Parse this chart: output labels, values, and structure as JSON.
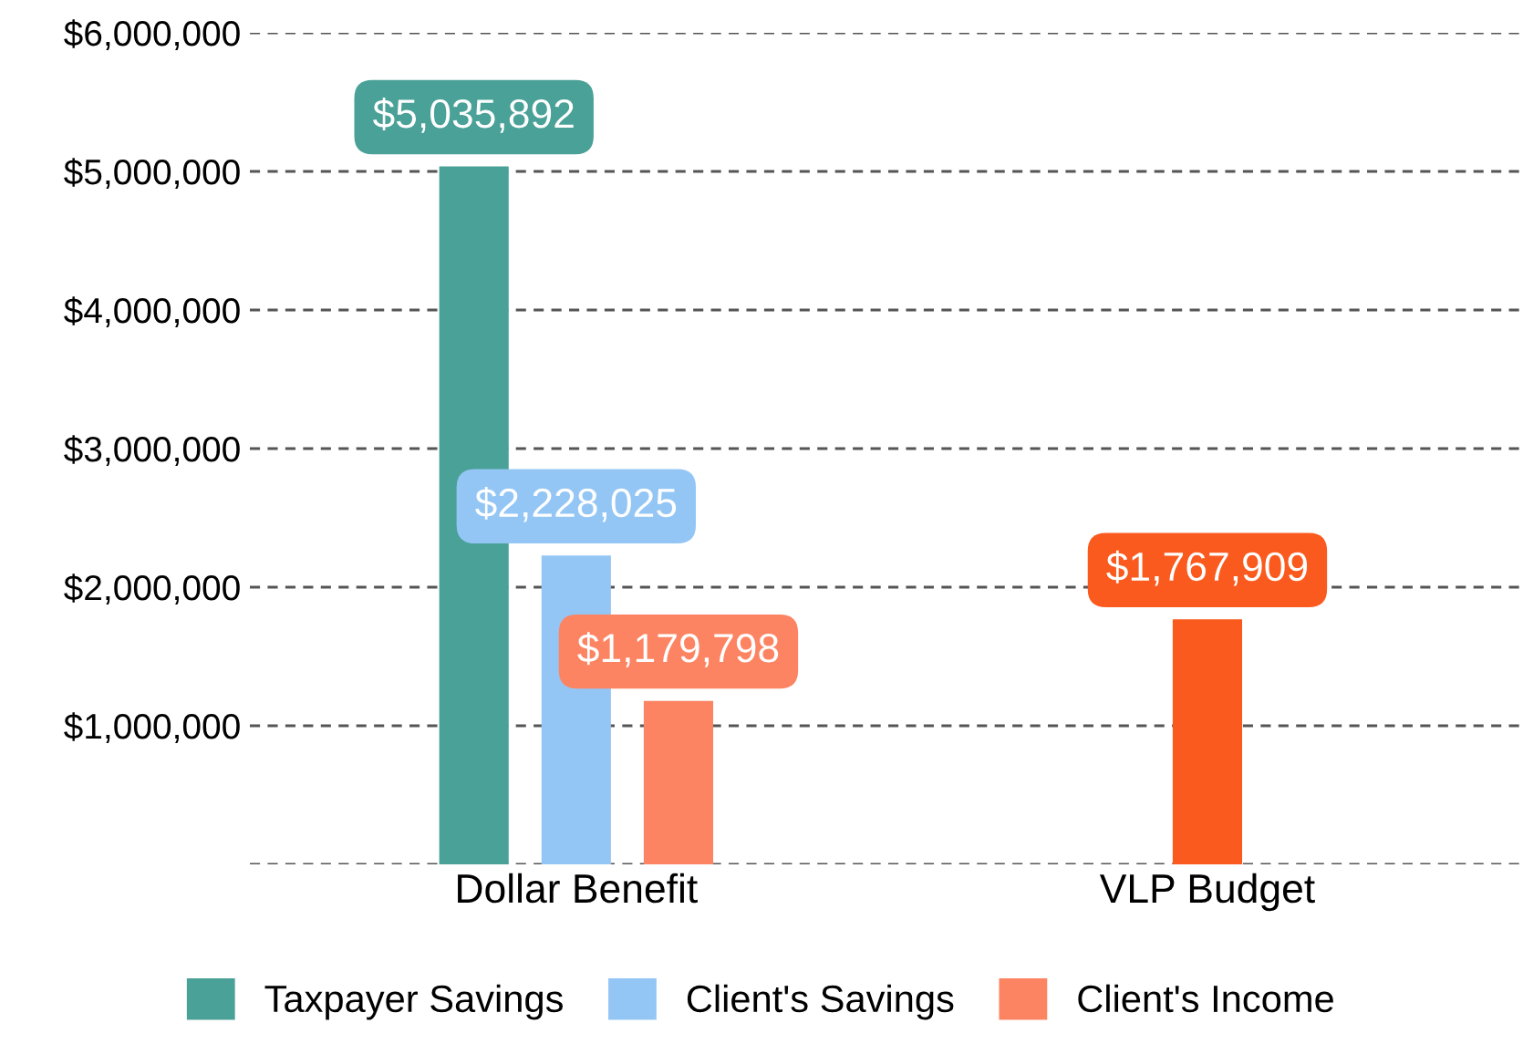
{
  "chart_data": {
    "type": "bar",
    "categories": [
      "Dollar Benefit",
      "VLP Budget"
    ],
    "series": [
      {
        "name": "Taxpayer Savings",
        "color": "#4aa197",
        "values": [
          5035892,
          null
        ],
        "value_labels": [
          "$5,035,892",
          null
        ]
      },
      {
        "name": "Client's Savings",
        "color": "#94c6f5",
        "values": [
          2228025,
          null
        ],
        "value_labels": [
          "$2,228,025",
          null
        ]
      },
      {
        "name": "Client's Income",
        "color": "#fc8462",
        "values": [
          1179798,
          null
        ],
        "value_labels": [
          "$1,179,798",
          null
        ]
      },
      {
        "color": "#fa5a1e",
        "values": [
          null,
          1767909
        ],
        "value_labels": [
          null,
          "$1,767,909"
        ]
      }
    ],
    "ylim": [
      0,
      6000000
    ],
    "yticks": [
      {
        "value": 0,
        "label": null
      },
      {
        "value": 1000000,
        "label": "$1,000,000"
      },
      {
        "value": 2000000,
        "label": "$2,000,000"
      },
      {
        "value": 3000000,
        "label": "$3,000,000"
      },
      {
        "value": 4000000,
        "label": "$4,000,000"
      },
      {
        "value": 5000000,
        "label": "$5,000,000"
      },
      {
        "value": 6000000,
        "label": "$6,000,000"
      }
    ],
    "grid": "y",
    "legend": "bottom"
  }
}
